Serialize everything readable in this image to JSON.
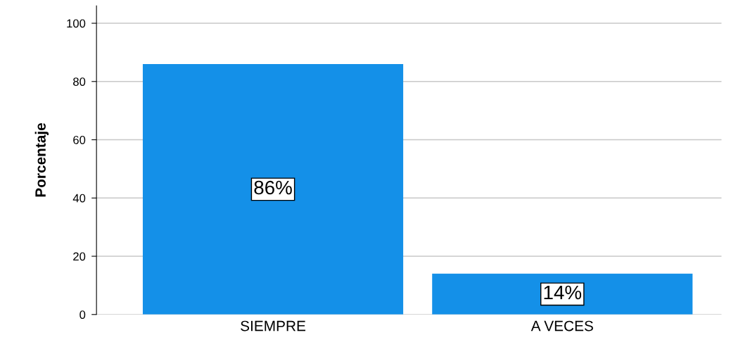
{
  "chart_data": {
    "type": "bar",
    "ylabel": "Porcentaje",
    "categories": [
      "SIEMPRE",
      "A VECES"
    ],
    "values": [
      86,
      14
    ],
    "value_labels": [
      "86%",
      "14%"
    ],
    "color": "#1490e8",
    "ylim": [
      0,
      106
    ],
    "yticks": [
      0,
      20,
      40,
      60,
      80,
      100
    ],
    "grid": "y",
    "legend": false
  }
}
